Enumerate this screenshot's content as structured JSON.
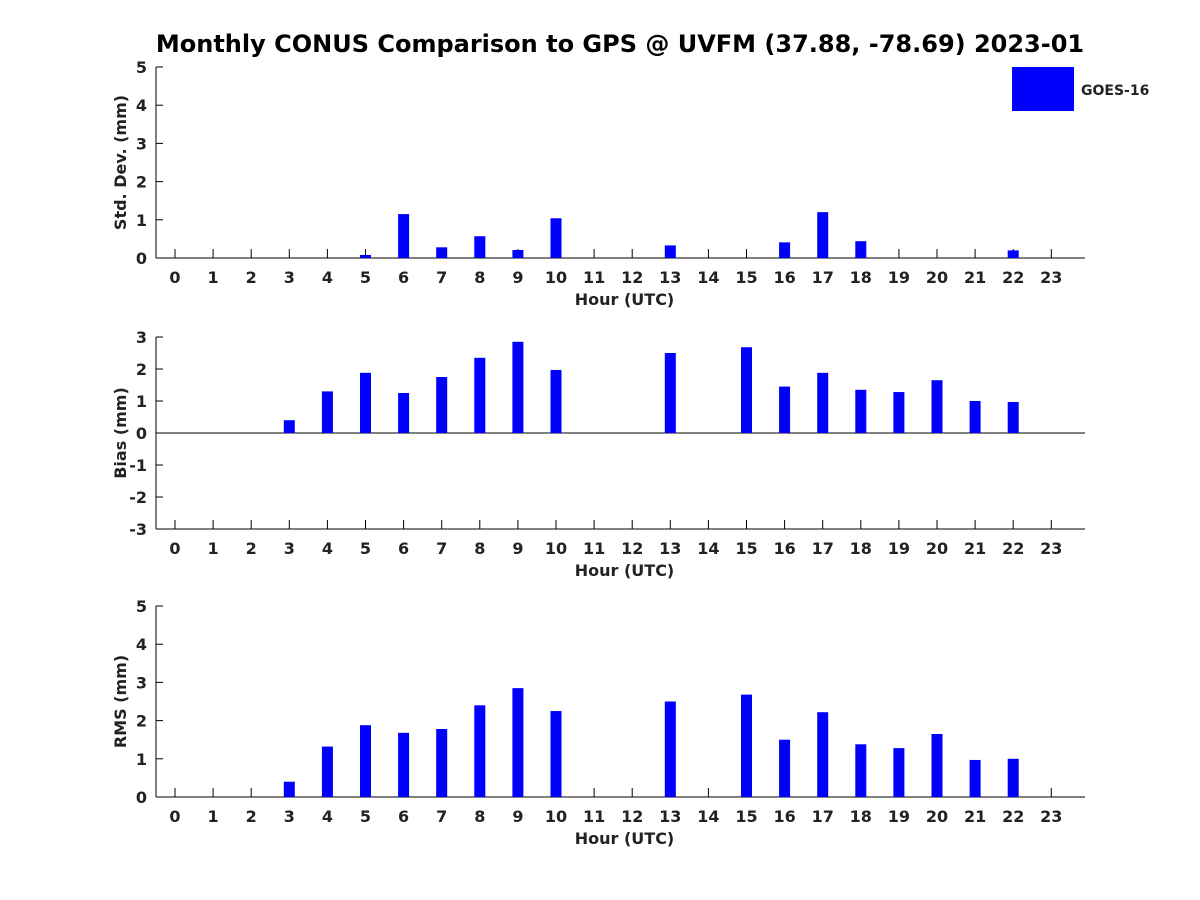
{
  "title": "Monthly CONUS Comparison to GPS @ UVFM (37.88, -78.69) 2023-01",
  "legend": {
    "label": "GOES-16",
    "color": "#0000ff"
  },
  "chart_data": [
    {
      "type": "bar",
      "xlabel": "Hour (UTC)",
      "ylabel": "Std. Dev. (mm)",
      "ylim": [
        0,
        5
      ],
      "yticks": [
        "0",
        "1",
        "2",
        "3",
        "4",
        "5"
      ],
      "categories": [
        "0",
        "1",
        "2",
        "3",
        "4",
        "5",
        "6",
        "7",
        "8",
        "9",
        "10",
        "11",
        "12",
        "13",
        "14",
        "15",
        "16",
        "17",
        "18",
        "19",
        "20",
        "21",
        "22",
        "23"
      ],
      "series": [
        {
          "name": "GOES-16",
          "values": [
            null,
            null,
            null,
            null,
            null,
            0.08,
            1.15,
            0.28,
            0.57,
            0.21,
            1.04,
            null,
            null,
            0.33,
            null,
            null,
            0.41,
            1.2,
            0.44,
            null,
            null,
            null,
            0.2,
            null
          ]
        }
      ]
    },
    {
      "type": "bar",
      "xlabel": "Hour (UTC)",
      "ylabel": "Bias (mm)",
      "ylim": [
        -3,
        3
      ],
      "yticks": [
        "-3",
        "-2",
        "-1",
        "0",
        "1",
        "2",
        "3"
      ],
      "categories": [
        "0",
        "1",
        "2",
        "3",
        "4",
        "5",
        "6",
        "7",
        "8",
        "9",
        "10",
        "11",
        "12",
        "13",
        "14",
        "15",
        "16",
        "17",
        "18",
        "19",
        "20",
        "21",
        "22",
        "23"
      ],
      "series": [
        {
          "name": "GOES-16",
          "values": [
            null,
            null,
            null,
            0.4,
            1.3,
            1.88,
            1.25,
            1.75,
            2.35,
            2.85,
            1.97,
            null,
            null,
            2.5,
            null,
            2.68,
            1.45,
            1.88,
            1.35,
            1.28,
            1.65,
            1.0,
            0.97,
            null
          ]
        }
      ]
    },
    {
      "type": "bar",
      "xlabel": "Hour (UTC)",
      "ylabel": "RMS (mm)",
      "ylim": [
        0,
        5
      ],
      "yticks": [
        "0",
        "1",
        "2",
        "3",
        "4",
        "5"
      ],
      "categories": [
        "0",
        "1",
        "2",
        "3",
        "4",
        "5",
        "6",
        "7",
        "8",
        "9",
        "10",
        "11",
        "12",
        "13",
        "14",
        "15",
        "16",
        "17",
        "18",
        "19",
        "20",
        "21",
        "22",
        "23"
      ],
      "series": [
        {
          "name": "GOES-16",
          "values": [
            null,
            null,
            null,
            0.4,
            1.32,
            1.88,
            1.68,
            1.78,
            2.4,
            2.85,
            2.25,
            null,
            null,
            2.5,
            null,
            2.68,
            1.5,
            2.22,
            1.38,
            1.28,
            1.65,
            0.97,
            1.0,
            null
          ]
        }
      ]
    }
  ]
}
